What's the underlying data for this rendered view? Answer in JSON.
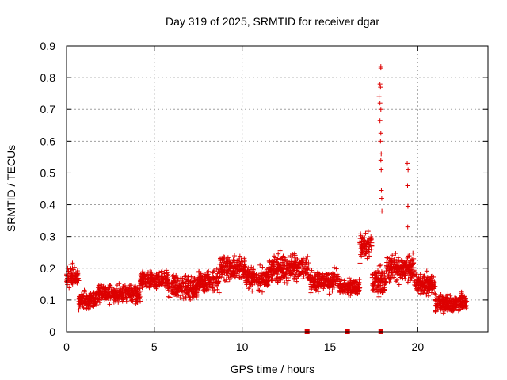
{
  "chart_data": {
    "type": "scatter",
    "title": "Day 319 of 2025, SRMTID for receiver dgar",
    "xlabel": "GPS time / hours",
    "ylabel": "SRMTID / TECUs",
    "xlim": [
      0,
      24
    ],
    "ylim": [
      0,
      0.9
    ],
    "xticks": [
      0,
      5,
      10,
      15,
      20
    ],
    "yticks": [
      0,
      0.1,
      0.2,
      0.3,
      0.4,
      0.5,
      0.6,
      0.7,
      0.8,
      0.9
    ],
    "x_tick_labels": [
      "0",
      "5",
      "10",
      "15",
      "20"
    ],
    "y_tick_labels": [
      "0",
      "0.1",
      "0.2",
      "0.3",
      "0.4",
      "0.5",
      "0.6",
      "0.7",
      "0.8",
      "0.9"
    ],
    "grid": true,
    "marker": "+",
    "color": "#dd0000",
    "series": [
      {
        "name": "SRMTID",
        "segments": [
          {
            "x0": 0.0,
            "x1": 0.7,
            "base": 0.17,
            "spread": 0.05
          },
          {
            "x0": 0.7,
            "x1": 1.8,
            "base": 0.1,
            "spread": 0.035
          },
          {
            "x0": 1.8,
            "x1": 3.0,
            "base": 0.12,
            "spread": 0.04
          },
          {
            "x0": 3.0,
            "x1": 4.2,
            "base": 0.12,
            "spread": 0.04
          },
          {
            "x0": 4.2,
            "x1": 5.8,
            "base": 0.16,
            "spread": 0.04
          },
          {
            "x0": 5.8,
            "x1": 7.5,
            "base": 0.14,
            "spread": 0.055
          },
          {
            "x0": 7.5,
            "x1": 8.7,
            "base": 0.16,
            "spread": 0.045
          },
          {
            "x0": 8.7,
            "x1": 10.2,
            "base": 0.2,
            "spread": 0.06
          },
          {
            "x0": 10.2,
            "x1": 11.5,
            "base": 0.17,
            "spread": 0.05
          },
          {
            "x0": 11.5,
            "x1": 13.8,
            "base": 0.2,
            "spread": 0.06
          },
          {
            "x0": 13.8,
            "x1": 15.5,
            "base": 0.16,
            "spread": 0.045
          },
          {
            "x0": 15.5,
            "x1": 16.7,
            "base": 0.14,
            "spread": 0.035
          },
          {
            "x0": 16.7,
            "x1": 17.4,
            "base": 0.27,
            "spread": 0.06
          },
          {
            "x0": 17.4,
            "x1": 18.2,
            "base": 0.16,
            "spread": 0.06
          },
          {
            "x0": 18.2,
            "x1": 19.8,
            "base": 0.2,
            "spread": 0.06
          },
          {
            "x0": 19.8,
            "x1": 21.0,
            "base": 0.15,
            "spread": 0.05
          },
          {
            "x0": 21.0,
            "x1": 22.8,
            "base": 0.09,
            "spread": 0.04
          }
        ],
        "spikes": [
          {
            "x": 17.9,
            "y": 0.835
          },
          {
            "x": 17.9,
            "y": 0.83
          },
          {
            "x": 17.85,
            "y": 0.78
          },
          {
            "x": 17.88,
            "y": 0.77
          },
          {
            "x": 17.8,
            "y": 0.74
          },
          {
            "x": 17.85,
            "y": 0.72
          },
          {
            "x": 17.9,
            "y": 0.7
          },
          {
            "x": 17.85,
            "y": 0.665
          },
          {
            "x": 17.9,
            "y": 0.625
          },
          {
            "x": 17.88,
            "y": 0.6
          },
          {
            "x": 17.92,
            "y": 0.56
          },
          {
            "x": 17.9,
            "y": 0.54
          },
          {
            "x": 17.92,
            "y": 0.51
          },
          {
            "x": 17.93,
            "y": 0.445
          },
          {
            "x": 17.95,
            "y": 0.42
          },
          {
            "x": 17.96,
            "y": 0.38
          },
          {
            "x": 19.4,
            "y": 0.53
          },
          {
            "x": 19.45,
            "y": 0.51
          },
          {
            "x": 19.42,
            "y": 0.46
          },
          {
            "x": 19.44,
            "y": 0.395
          },
          {
            "x": 19.43,
            "y": 0.33
          }
        ],
        "zero_points": [
          13.7,
          16.0,
          17.9
        ]
      }
    ]
  }
}
